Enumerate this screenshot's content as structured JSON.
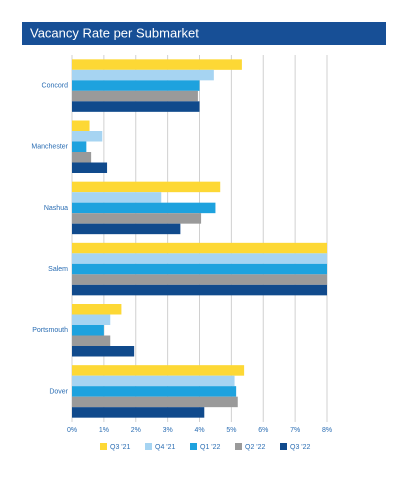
{
  "chart_data": {
    "type": "hbar",
    "title": "Vacancy Rate per Submarket",
    "categories": [
      "Concord",
      "Manchester",
      "Nashua",
      "Salem",
      "Portsmouth",
      "Dover"
    ],
    "series": [
      {
        "name": "Q3 '21",
        "color": "#fdd835",
        "values": [
          5.33,
          0.55,
          4.65,
          8.0,
          1.55,
          5.4
        ]
      },
      {
        "name": "Q4 '21",
        "color": "#a6d4f2",
        "values": [
          4.45,
          0.95,
          2.8,
          8.0,
          1.2,
          5.1
        ]
      },
      {
        "name": "Q1 '22",
        "color": "#1ea2de",
        "values": [
          4.0,
          0.45,
          4.5,
          8.0,
          1.0,
          5.15
        ]
      },
      {
        "name": "Q2 '22",
        "color": "#9a9a9a",
        "values": [
          3.95,
          0.6,
          4.05,
          8.0,
          1.2,
          5.2
        ]
      },
      {
        "name": "Q3 '22",
        "color": "#104a8c",
        "values": [
          4.0,
          1.1,
          3.4,
          8.0,
          1.95,
          4.15
        ]
      }
    ],
    "xlim": [
      0,
      8
    ],
    "xticks": [
      {
        "value": 0,
        "label": "0%"
      },
      {
        "value": 1,
        "label": "1%"
      },
      {
        "value": 2,
        "label": "2%"
      },
      {
        "value": 3,
        "label": "3%"
      },
      {
        "value": 4,
        "label": "4%"
      },
      {
        "value": 5,
        "label": "5%"
      },
      {
        "value": 6,
        "label": "6%"
      },
      {
        "value": 7,
        "label": "7%"
      },
      {
        "value": 8,
        "label": "8%"
      }
    ],
    "grid": true
  }
}
